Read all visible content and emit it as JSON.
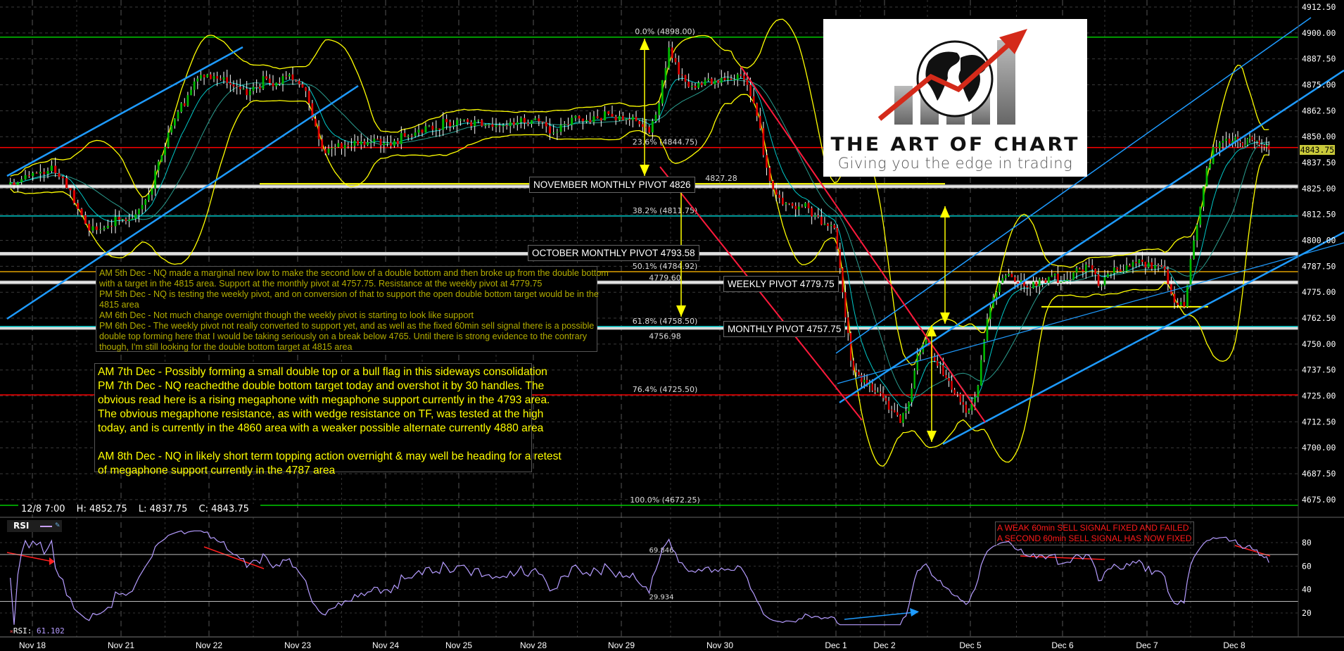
{
  "chart_data": {
    "type": "candlestick",
    "instrument_timeframe": "60min",
    "price_axis": {
      "ylim": [
        4670,
        4915
      ],
      "ticks": [
        "4912.50",
        "4900.00",
        "4887.50",
        "4875.00",
        "4862.50",
        "4850.00",
        "4837.50",
        "4825.00",
        "4812.50",
        "4800.00",
        "4787.50",
        "4775.00",
        "4762.50",
        "4750.00",
        "4737.50",
        "4725.00",
        "4712.50",
        "4700.00",
        "4687.50",
        "4675.00"
      ]
    },
    "last_price": "4843.75",
    "x_labels": [
      "Nov 18",
      "Nov 21",
      "Nov 22",
      "Nov 23",
      "Nov 24",
      "Nov 25",
      "Nov 28",
      "Nov 29",
      "Nov 30",
      "Dec 1",
      "Dec 2",
      "Dec 5",
      "Dec 6",
      "Dec 7",
      "Dec 8"
    ],
    "sessions": [
      {
        "label": "Nov 18",
        "closes": [
          4828,
          4831,
          4833,
          4836,
          4830,
          4818,
          4808,
          4805,
          4807,
          4810
        ]
      },
      {
        "label": "Nov 21",
        "closes": [
          4810,
          4815,
          4822,
          4838,
          4852,
          4862,
          4870,
          4878,
          4880
        ]
      },
      {
        "label": "Nov 22",
        "closes": [
          4878,
          4876,
          4874,
          4870,
          4874,
          4878,
          4876,
          4879,
          4877
        ]
      },
      {
        "label": "Nov 23",
        "closes": [
          4872,
          4855,
          4842,
          4845,
          4846,
          4848,
          4846,
          4849,
          4847
        ]
      },
      {
        "label": "Nov 24",
        "closes": [
          4848,
          4850,
          4852,
          4855,
          4854,
          4857,
          4858
        ]
      },
      {
        "label": "Nov 25",
        "closes": [
          4857,
          4858,
          4856,
          4855,
          4857,
          4859,
          4858
        ]
      },
      {
        "label": "Nov 28",
        "closes": [
          4857,
          4852,
          4856,
          4860,
          4858,
          4859,
          4861,
          4860
        ]
      },
      {
        "label": "Nov 29",
        "closes": [
          4858,
          4856,
          4852,
          4866,
          4893,
          4880,
          4874,
          4876,
          4878,
          4876
        ]
      },
      {
        "label": "Nov 30",
        "closes": [
          4878,
          4880,
          4875,
          4860,
          4835,
          4822,
          4818,
          4815,
          4818,
          4812,
          4808,
          4806
        ]
      },
      {
        "label": "Dec 1",
        "closes": [
          4775,
          4742,
          4735,
          4730,
          4727,
          4724
        ]
      },
      {
        "label": "Dec 2",
        "closes": [
          4718,
          4712,
          4722,
          4745,
          4752,
          4742,
          4735,
          4728,
          4722,
          4718
        ]
      },
      {
        "label": "Dec 5",
        "closes": [
          4730,
          4762,
          4775,
          4783,
          4780,
          4778,
          4780,
          4781,
          4783,
          4780
        ]
      },
      {
        "label": "Dec 6",
        "closes": [
          4781,
          4786,
          4788,
          4778,
          4784,
          4786,
          4788,
          4789,
          4787
        ]
      },
      {
        "label": "Dec 7",
        "closes": [
          4788,
          4786,
          4770,
          4768,
          4800,
          4826,
          4845,
          4848,
          4848
        ]
      },
      {
        "label": "Dec 8",
        "closes": [
          4847,
          4849,
          4848,
          4846,
          4843.75
        ]
      }
    ],
    "indicators": [
      "Bollinger Bands",
      "moving average"
    ],
    "fib_levels": [
      {
        "label": "0.0% (4898.00)",
        "price": 4898.0,
        "color": "#00cc00"
      },
      {
        "label": "23.6% (4844.75)",
        "price": 4844.75,
        "color": "#ff0000"
      },
      {
        "label": "38.2% (4811.75)",
        "price": 4811.75,
        "color": "#00c8c8"
      },
      {
        "label": "50.1% (4784.92)",
        "price": 4784.92,
        "color": "#e0a000"
      },
      {
        "label": "61.8% (4758.50)",
        "price": 4758.5,
        "color": "#00c8c8"
      },
      {
        "label": "76.4% (4725.50)",
        "price": 4725.5,
        "color": "#ff0000"
      },
      {
        "label": "100.0% (4672.25)",
        "price": 4672.25,
        "color": "#00cc00"
      }
    ],
    "pivots": [
      {
        "label": "NOVEMBER MONTHLY PIVOT 4826",
        "price": 4826
      },
      {
        "label": "OCTOBER MONTHLY PIVOT 4793.58",
        "price": 4793.58
      },
      {
        "label": "WEEKLY PIVOT 4779.75",
        "price": 4779.75
      },
      {
        "label": "MONTHLY PIVOT 4757.75",
        "price": 4757.75
      }
    ],
    "level_labels": [
      "4827.28",
      "4779.60",
      "4756.98"
    ],
    "rsi": {
      "label": "RSI",
      "current": "61.102",
      "ylim": [
        0,
        100
      ],
      "ticks": [
        "80",
        "60",
        "40",
        "20"
      ],
      "overbought": "69.846",
      "oversold": "29.934",
      "line_color": "#b59cff"
    }
  },
  "info_bar": {
    "time": "12/8 7:00",
    "high": "H: 4852.75",
    "low": "L: 4837.75",
    "close": "C: 4843.75"
  },
  "rsi_status": {
    "prefix": "RSI: ",
    "value": "61.102"
  },
  "notes": {
    "box1": [
      "AM 5th Dec - NQ made a marginal new low to make the second low of a double bottom and then broke up from the double bottom",
      "with a target in the 4815 area. Support at the monthly pivot at 4757.75. Resistance at the weekly pivot at 4779.75",
      "PM 5th Dec - NQ is testing the weekly pivot, and on conversion of that to support the open double bottom target would be in the",
      "4815 area",
      "AM 6th Dec - Not much change overnight though the weekly pivot is starting to look like support",
      "PM 6th Dec - The weekly pivot not really converted to support yet, and as well as the fixed 60min sell signal there is a possible",
      "double top forming here that I would be taking seriously on a break below 4765. Until there is strong evidence to the contrary",
      "though, I'm still looking for the double bottom target at 4815 area"
    ],
    "box2": [
      "AM 7th Dec - Possibly forming a small double top or a bull flag in this sideways consolidation",
      "PM 7th Dec - NQ reachedthe double bottom target today and overshot it by 30 handles. The",
      "obvious read here is a rising megaphone with megaphone support currently in the 4793 area.",
      "The obvious megaphone resistance, as with wedge resistance on TF, was tested at the high",
      "today, and is currently in the 4860 area with a weaker possible alternate currently 4880 area",
      "AM 8th Dec - NQ in likely short term topping action overnight & may well be heading for a retest",
      "of megaphone support currently in the 4787 area"
    ]
  },
  "signal_box": [
    "A WEAK 60min SELL SIGNAL FIXED AND FAILED",
    "A SECOND 60min SELL SIGNAL HAS NOW FIXED"
  ],
  "logo": {
    "title": "THE ART OF CHART",
    "tagline": "Giving you the edge in trading"
  },
  "colors": {
    "background": "#000000",
    "up_candle": "#00b800",
    "down_candle": "#e00000",
    "bollinger": "#ffff00",
    "ma": "#00c8c8",
    "trendline_blue": "#1e9bff",
    "trendline_red": "#ff1a3c",
    "pivot_line": "#c8c8c8"
  }
}
